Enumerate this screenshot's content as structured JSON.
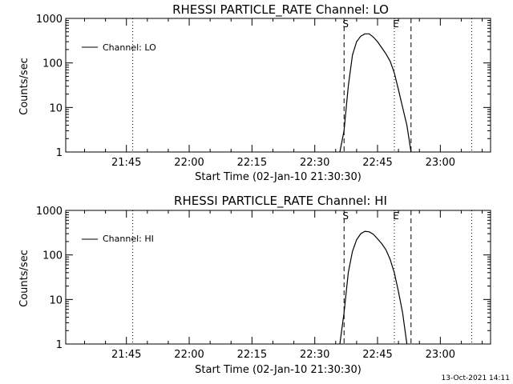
{
  "footer_timestamp": "13-Oct-2021 14:11",
  "chart_data": [
    {
      "type": "line",
      "title": "RHESSI PARTICLE_RATE Channel: LO",
      "xlabel": "Start Time (02-Jan-10 21:30:30)",
      "ylabel": "Counts/sec",
      "y_scale": "log",
      "ylim": [
        1,
        1000
      ],
      "y_ticks": [
        "1",
        "10",
        "100",
        "1000"
      ],
      "xlim": [
        "21:30:30",
        "23:12:00"
      ],
      "x_ticks": [
        "21:45",
        "22:00",
        "22:15",
        "22:30",
        "22:45",
        "23:00"
      ],
      "grid": false,
      "legend_position": "top-left",
      "series": [
        {
          "name": "Channel: LO",
          "x": [
            "22:36:00",
            "22:37:00",
            "22:38:00",
            "22:39:00",
            "22:40:00",
            "22:41:00",
            "22:42:00",
            "22:43:00",
            "22:44:00",
            "22:45:00",
            "22:46:00",
            "22:47:00",
            "22:48:00",
            "22:49:00",
            "22:50:00",
            "22:51:00",
            "22:52:00",
            "22:53:00"
          ],
          "values": [
            1,
            3,
            30,
            150,
            300,
            400,
            450,
            450,
            380,
            300,
            220,
            160,
            110,
            60,
            25,
            10,
            4,
            1
          ]
        }
      ],
      "annotations": [
        {
          "type": "vline",
          "x": "21:46:30",
          "style": "dotted"
        },
        {
          "type": "vline",
          "x": "22:37:00",
          "style": "dashed",
          "label": "S"
        },
        {
          "type": "vline",
          "x": "22:49:00",
          "style": "dotted",
          "label": "E"
        },
        {
          "type": "vline",
          "x": "22:53:00",
          "style": "dashed"
        },
        {
          "type": "vline",
          "x": "23:07:30",
          "style": "dotted"
        }
      ]
    },
    {
      "type": "line",
      "title": "RHESSI PARTICLE_RATE Channel: HI",
      "xlabel": "Start Time (02-Jan-10 21:30:30)",
      "ylabel": "Counts/sec",
      "y_scale": "log",
      "ylim": [
        1,
        1000
      ],
      "y_ticks": [
        "1",
        "10",
        "100",
        "1000"
      ],
      "xlim": [
        "21:30:30",
        "23:12:00"
      ],
      "x_ticks": [
        "21:45",
        "22:00",
        "22:15",
        "22:30",
        "22:45",
        "23:00"
      ],
      "grid": false,
      "legend_position": "top-left",
      "series": [
        {
          "name": "Channel: HI",
          "x": [
            "22:36:00",
            "22:37:00",
            "22:38:00",
            "22:39:00",
            "22:40:00",
            "22:41:00",
            "22:42:00",
            "22:43:00",
            "22:44:00",
            "22:45:00",
            "22:46:00",
            "22:47:00",
            "22:48:00",
            "22:49:00",
            "22:50:00",
            "22:51:00",
            "22:52:00"
          ],
          "values": [
            1,
            5,
            40,
            120,
            220,
            300,
            340,
            330,
            290,
            230,
            180,
            130,
            80,
            40,
            15,
            5,
            1
          ]
        }
      ],
      "annotations": [
        {
          "type": "vline",
          "x": "21:46:30",
          "style": "dotted"
        },
        {
          "type": "vline",
          "x": "22:37:00",
          "style": "dashed",
          "label": "S"
        },
        {
          "type": "vline",
          "x": "22:49:00",
          "style": "dotted",
          "label": "E"
        },
        {
          "type": "vline",
          "x": "22:53:00",
          "style": "dashed"
        },
        {
          "type": "vline",
          "x": "23:07:30",
          "style": "dotted"
        }
      ]
    }
  ]
}
